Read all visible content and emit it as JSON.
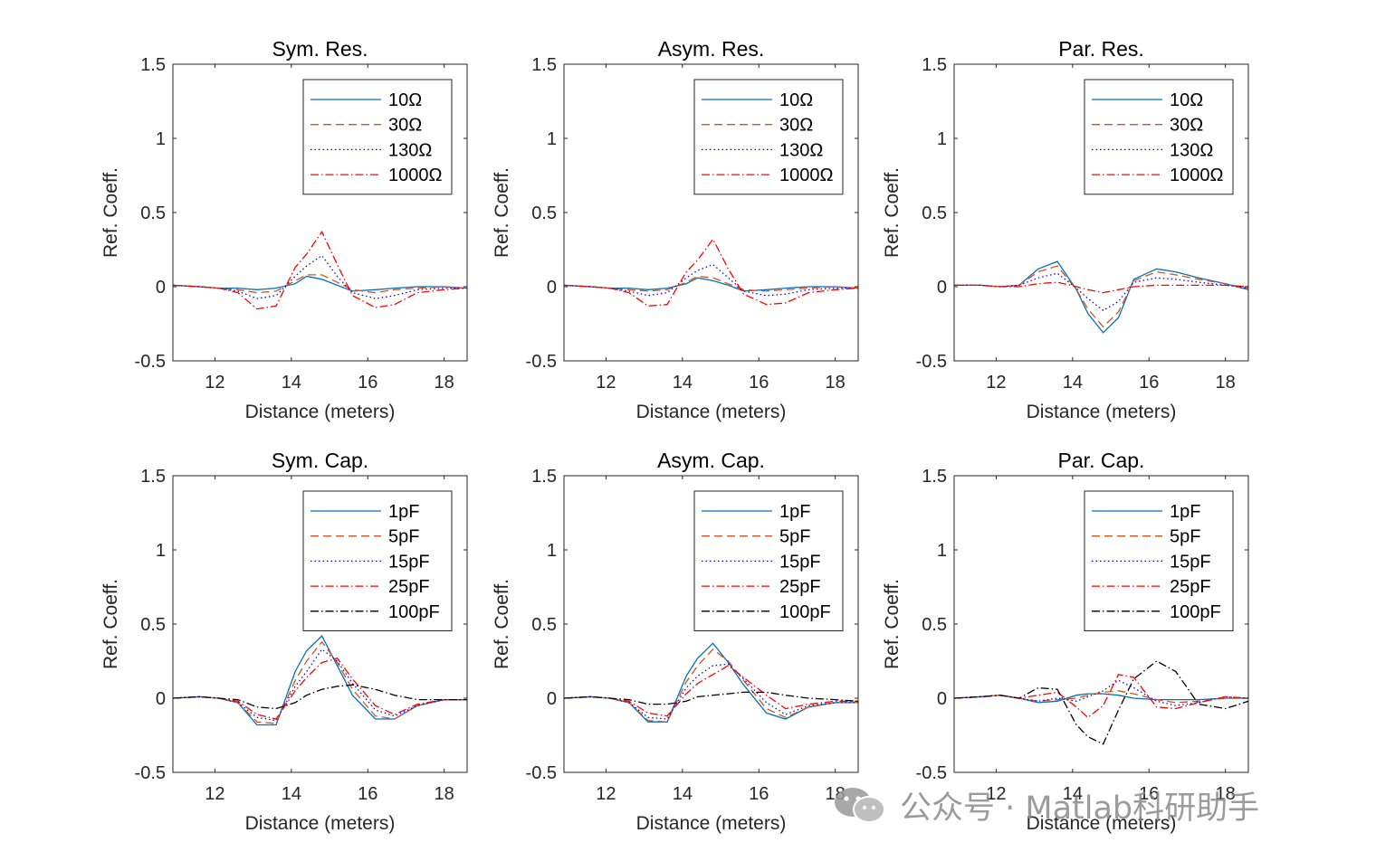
{
  "watermark": {
    "text": "公众号 · Matlab科研助手",
    "icon": "wechat-icon"
  },
  "chart_data": [
    {
      "type": "line",
      "title": "Sym. Res.",
      "xlabel": "Distance (meters)",
      "ylabel": "Ref. Coeff.",
      "xlim": [
        10.9,
        18.6
      ],
      "ylim": [
        -0.5,
        1.5
      ],
      "xticks": [
        12,
        14,
        16,
        18
      ],
      "yticks": [
        -0.5,
        0,
        0.5,
        1,
        1.5
      ],
      "ytick_labels": [
        "-0.5",
        "0",
        "0.5",
        "1",
        "1.5"
      ],
      "x": [
        10.9,
        11.6,
        12.1,
        12.6,
        13.1,
        13.6,
        14.1,
        14.4,
        14.8,
        15.2,
        15.6,
        16.2,
        16.7,
        17.3,
        18.0,
        18.6
      ],
      "series": [
        {
          "name": "10Ω",
          "color": "#0072BD",
          "dash": "solid",
          "values": [
            0.01,
            0.0,
            -0.01,
            -0.01,
            -0.02,
            -0.01,
            0.02,
            0.07,
            0.05,
            0.01,
            -0.03,
            -0.02,
            -0.01,
            0.0,
            0.0,
            -0.01
          ]
        },
        {
          "name": "30Ω",
          "color": "#D95319",
          "dash": "dashed",
          "values": [
            0.01,
            0.0,
            -0.01,
            -0.02,
            -0.04,
            -0.03,
            0.04,
            0.08,
            0.08,
            0.03,
            -0.02,
            -0.04,
            -0.02,
            -0.01,
            0.0,
            -0.01
          ]
        },
        {
          "name": "130Ω",
          "color": "#0000FF",
          "dash": "dotted",
          "values": [
            0.01,
            0.0,
            -0.01,
            -0.03,
            -0.08,
            -0.06,
            0.07,
            0.14,
            0.21,
            0.07,
            -0.04,
            -0.08,
            -0.06,
            -0.02,
            -0.01,
            -0.01
          ]
        },
        {
          "name": "1000Ω",
          "color": "#FF0000",
          "dash": "dashdot",
          "values": [
            0.01,
            0.0,
            -0.01,
            -0.04,
            -0.15,
            -0.13,
            0.13,
            0.22,
            0.37,
            0.15,
            -0.06,
            -0.14,
            -0.12,
            -0.04,
            -0.02,
            -0.01
          ]
        }
      ]
    },
    {
      "type": "line",
      "title": "Asym. Res.",
      "xlabel": "Distance (meters)",
      "ylabel": "Ref. Coeff.",
      "xlim": [
        10.9,
        18.6
      ],
      "ylim": [
        -0.5,
        1.5
      ],
      "xticks": [
        12,
        14,
        16,
        18
      ],
      "yticks": [
        -0.5,
        0,
        0.5,
        1,
        1.5
      ],
      "ytick_labels": [
        "-0.5",
        "0",
        "0.5",
        "1",
        "1.5"
      ],
      "x": [
        10.9,
        11.6,
        12.1,
        12.6,
        13.1,
        13.6,
        14.1,
        14.4,
        14.8,
        15.2,
        15.6,
        16.2,
        16.7,
        17.3,
        18.0,
        18.6
      ],
      "series": [
        {
          "name": "10Ω",
          "color": "#0072BD",
          "dash": "solid",
          "values": [
            0.01,
            0.0,
            -0.01,
            -0.01,
            -0.02,
            -0.01,
            0.02,
            0.06,
            0.04,
            0.01,
            -0.03,
            -0.02,
            -0.01,
            0.0,
            0.0,
            -0.01
          ]
        },
        {
          "name": "30Ω",
          "color": "#D95319",
          "dash": "dashed",
          "values": [
            0.01,
            0.0,
            -0.01,
            -0.02,
            -0.03,
            -0.02,
            0.03,
            0.07,
            0.06,
            0.02,
            -0.02,
            -0.03,
            -0.02,
            -0.01,
            0.0,
            -0.01
          ]
        },
        {
          "name": "130Ω",
          "color": "#0000FF",
          "dash": "dotted",
          "values": [
            0.01,
            0.0,
            -0.01,
            -0.03,
            -0.06,
            -0.04,
            0.06,
            0.11,
            0.15,
            0.06,
            -0.03,
            -0.06,
            -0.05,
            -0.02,
            -0.01,
            -0.01
          ]
        },
        {
          "name": "1000Ω",
          "color": "#FF0000",
          "dash": "dashdot",
          "values": [
            0.01,
            0.0,
            -0.01,
            -0.04,
            -0.13,
            -0.12,
            0.1,
            0.18,
            0.32,
            0.12,
            -0.05,
            -0.12,
            -0.11,
            -0.04,
            -0.02,
            -0.01
          ]
        }
      ]
    },
    {
      "type": "line",
      "title": "Par. Res.",
      "xlabel": "Distance (meters)",
      "ylabel": "Ref. Coeff.",
      "xlim": [
        10.9,
        18.6
      ],
      "ylim": [
        -0.5,
        1.5
      ],
      "xticks": [
        12,
        14,
        16,
        18
      ],
      "yticks": [
        -0.5,
        0,
        0.5,
        1,
        1.5
      ],
      "ytick_labels": [
        "-0.5",
        "0",
        "0.5",
        "1",
        "1.5"
      ],
      "x": [
        10.9,
        11.6,
        12.1,
        12.6,
        13.1,
        13.6,
        14.1,
        14.4,
        14.8,
        15.2,
        15.6,
        16.2,
        16.7,
        17.3,
        18.0,
        18.6
      ],
      "series": [
        {
          "name": "10Ω",
          "color": "#0072BD",
          "dash": "solid",
          "values": [
            0.01,
            0.01,
            0.0,
            0.01,
            0.12,
            0.17,
            -0.02,
            -0.18,
            -0.31,
            -0.21,
            0.05,
            0.12,
            0.1,
            0.06,
            0.02,
            -0.02
          ]
        },
        {
          "name": "30Ω",
          "color": "#D95319",
          "dash": "dashed",
          "values": [
            0.01,
            0.01,
            0.0,
            0.01,
            0.1,
            0.14,
            -0.02,
            -0.15,
            -0.27,
            -0.17,
            0.04,
            0.1,
            0.08,
            0.05,
            0.02,
            -0.01
          ]
        },
        {
          "name": "130Ω",
          "color": "#0000FF",
          "dash": "dotted",
          "values": [
            0.01,
            0.01,
            0.0,
            0.01,
            0.06,
            0.09,
            -0.01,
            -0.08,
            -0.16,
            -0.1,
            0.03,
            0.06,
            0.05,
            0.03,
            0.01,
            -0.01
          ]
        },
        {
          "name": "1000Ω",
          "color": "#FF0000",
          "dash": "dashdot",
          "values": [
            0.01,
            0.01,
            0.0,
            0.0,
            0.02,
            0.03,
            0.0,
            -0.02,
            -0.04,
            -0.02,
            0.0,
            0.01,
            0.01,
            0.01,
            0.01,
            0.0
          ]
        }
      ]
    },
    {
      "type": "line",
      "title": "Sym. Cap.",
      "xlabel": "Distance (meters)",
      "ylabel": "Ref. Coeff.",
      "xlim": [
        10.9,
        18.6
      ],
      "ylim": [
        -0.5,
        1.5
      ],
      "xticks": [
        12,
        14,
        16,
        18
      ],
      "yticks": [
        -0.5,
        0,
        0.5,
        1,
        1.5
      ],
      "ytick_labels": [
        "-0.5",
        "0",
        "0.5",
        "1",
        "1.5"
      ],
      "x": [
        10.9,
        11.6,
        12.1,
        12.6,
        13.1,
        13.6,
        14.1,
        14.4,
        14.8,
        15.2,
        15.6,
        16.2,
        16.7,
        17.3,
        18.0,
        18.6
      ],
      "series": [
        {
          "name": "1pF",
          "color": "#0072BD",
          "dash": "solid",
          "values": [
            0.0,
            0.01,
            0.0,
            -0.03,
            -0.18,
            -0.18,
            0.18,
            0.32,
            0.42,
            0.22,
            0.02,
            -0.14,
            -0.14,
            -0.05,
            -0.01,
            -0.01
          ]
        },
        {
          "name": "5pF",
          "color": "#D95319",
          "dash": "dashed",
          "values": [
            0.0,
            0.01,
            0.0,
            -0.03,
            -0.16,
            -0.17,
            0.12,
            0.25,
            0.38,
            0.24,
            0.06,
            -0.12,
            -0.14,
            -0.05,
            -0.01,
            -0.01
          ]
        },
        {
          "name": "15pF",
          "color": "#0000FF",
          "dash": "dotted",
          "values": [
            0.0,
            0.01,
            0.0,
            -0.03,
            -0.13,
            -0.15,
            0.08,
            0.18,
            0.33,
            0.25,
            0.1,
            -0.08,
            -0.12,
            -0.05,
            -0.01,
            -0.01
          ]
        },
        {
          "name": "25pF",
          "color": "#FF0000",
          "dash": "dashdot",
          "values": [
            0.0,
            0.01,
            0.0,
            -0.02,
            -0.11,
            -0.14,
            0.05,
            0.14,
            0.24,
            0.27,
            0.13,
            -0.05,
            -0.11,
            -0.04,
            -0.01,
            -0.01
          ]
        },
        {
          "name": "100pF",
          "color": "#000000",
          "dash": "dashdot",
          "values": [
            0.0,
            0.01,
            0.0,
            -0.01,
            -0.06,
            -0.07,
            -0.03,
            0.02,
            0.06,
            0.08,
            0.09,
            0.06,
            0.02,
            -0.01,
            -0.01,
            -0.01
          ]
        }
      ]
    },
    {
      "type": "line",
      "title": "Asym. Cap.",
      "xlabel": "Distance (meters)",
      "ylabel": "Ref. Coeff.",
      "xlim": [
        10.9,
        18.6
      ],
      "ylim": [
        -0.5,
        1.5
      ],
      "xticks": [
        12,
        14,
        16,
        18
      ],
      "yticks": [
        -0.5,
        0,
        0.5,
        1,
        1.5
      ],
      "ytick_labels": [
        "-0.5",
        "0",
        "0.5",
        "1",
        "1.5"
      ],
      "x": [
        10.9,
        11.6,
        12.1,
        12.6,
        13.1,
        13.6,
        14.1,
        14.4,
        14.8,
        15.2,
        15.6,
        16.2,
        16.7,
        17.3,
        18.0,
        18.6
      ],
      "series": [
        {
          "name": "1pF",
          "color": "#0072BD",
          "dash": "solid",
          "values": [
            0.0,
            0.01,
            0.0,
            -0.03,
            -0.16,
            -0.16,
            0.15,
            0.27,
            0.37,
            0.24,
            0.09,
            -0.1,
            -0.14,
            -0.06,
            -0.03,
            -0.03
          ]
        },
        {
          "name": "5pF",
          "color": "#D95319",
          "dash": "dashed",
          "values": [
            0.0,
            0.01,
            0.0,
            -0.03,
            -0.15,
            -0.16,
            0.11,
            0.22,
            0.33,
            0.25,
            0.12,
            -0.07,
            -0.13,
            -0.06,
            -0.03,
            -0.03
          ]
        },
        {
          "name": "15pF",
          "color": "#0000FF",
          "dash": "dotted",
          "values": [
            0.0,
            0.01,
            0.0,
            -0.03,
            -0.13,
            -0.14,
            0.07,
            0.15,
            0.22,
            0.23,
            0.13,
            -0.03,
            -0.11,
            -0.05,
            -0.03,
            -0.03
          ]
        },
        {
          "name": "25pF",
          "color": "#FF0000",
          "dash": "dashdot",
          "values": [
            0.0,
            0.01,
            0.0,
            -0.02,
            -0.1,
            -0.12,
            0.03,
            0.1,
            0.16,
            0.22,
            0.14,
            0.02,
            -0.07,
            -0.04,
            -0.02,
            -0.02
          ]
        },
        {
          "name": "100pF",
          "color": "#000000",
          "dash": "dashdot",
          "values": [
            0.0,
            0.01,
            0.0,
            -0.01,
            -0.04,
            -0.04,
            -0.02,
            0.01,
            0.02,
            0.03,
            0.04,
            0.04,
            0.02,
            0.0,
            -0.01,
            -0.02
          ]
        }
      ]
    },
    {
      "type": "line",
      "title": "Par. Cap.",
      "xlabel": "Distance (meters)",
      "ylabel": "Ref. Coeff.",
      "xlim": [
        10.9,
        18.6
      ],
      "ylim": [
        -0.5,
        1.5
      ],
      "xticks": [
        12,
        14,
        16,
        18
      ],
      "yticks": [
        -0.5,
        0,
        0.5,
        1,
        1.5
      ],
      "ytick_labels": [
        "-0.5",
        "0",
        "0.5",
        "1",
        "1.5"
      ],
      "x": [
        10.9,
        11.6,
        12.1,
        12.6,
        13.1,
        13.6,
        14.1,
        14.4,
        14.8,
        15.2,
        15.6,
        16.2,
        16.7,
        17.3,
        18.0,
        18.6
      ],
      "series": [
        {
          "name": "1pF",
          "color": "#0072BD",
          "dash": "solid",
          "values": [
            0.0,
            0.01,
            0.02,
            0.0,
            -0.03,
            -0.02,
            0.02,
            0.03,
            0.03,
            0.02,
            0.0,
            -0.01,
            -0.01,
            -0.01,
            0.0,
            0.0
          ]
        },
        {
          "name": "5pF",
          "color": "#D95319",
          "dash": "dashed",
          "values": [
            0.0,
            0.01,
            0.02,
            0.0,
            -0.02,
            -0.01,
            0.0,
            0.02,
            0.04,
            0.05,
            0.03,
            -0.01,
            -0.03,
            -0.02,
            0.0,
            0.0
          ]
        },
        {
          "name": "15pF",
          "color": "#0000FF",
          "dash": "dotted",
          "values": [
            0.0,
            0.01,
            0.02,
            0.0,
            -0.02,
            0.0,
            -0.02,
            0.01,
            0.05,
            0.12,
            0.07,
            -0.02,
            -0.05,
            -0.03,
            0.01,
            0.0
          ]
        },
        {
          "name": "25pF",
          "color": "#FF0000",
          "dash": "dashdot",
          "values": [
            0.0,
            0.01,
            0.02,
            0.0,
            0.02,
            0.04,
            -0.06,
            -0.13,
            -0.05,
            0.16,
            0.14,
            -0.06,
            -0.07,
            -0.03,
            0.01,
            0.0
          ]
        },
        {
          "name": "100pF",
          "color": "#000000",
          "dash": "dashdot",
          "values": [
            0.0,
            0.01,
            0.02,
            0.0,
            0.07,
            0.06,
            -0.18,
            -0.26,
            -0.31,
            -0.08,
            0.13,
            0.25,
            0.18,
            -0.04,
            -0.07,
            -0.02
          ]
        }
      ]
    }
  ]
}
